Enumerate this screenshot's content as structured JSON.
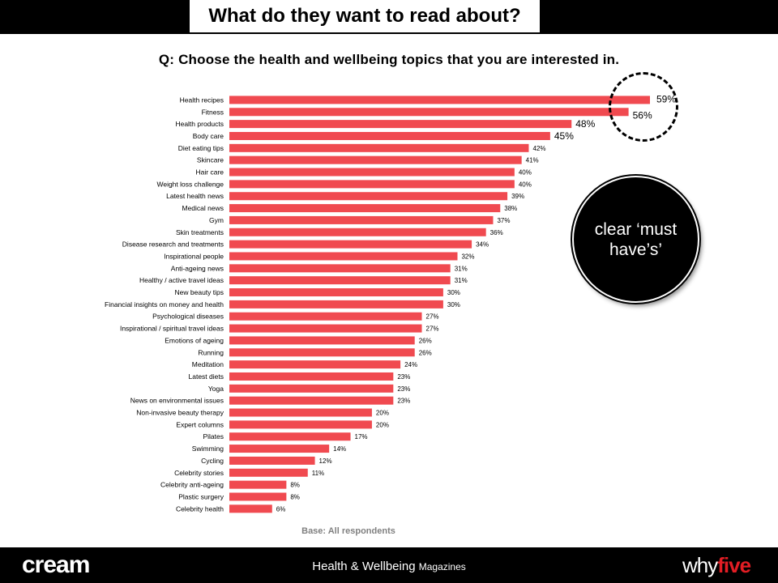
{
  "header": {
    "title": "What do they want to read about?"
  },
  "question": "Q: Choose the health and wellbeing topics that you are interested in.",
  "callout": {
    "text": "clear ‘must have’s’"
  },
  "base_note": "Base: All respondents",
  "footer": {
    "left_logo": "cream",
    "center_main": "Health & Wellbeing",
    "center_small": "Magazines",
    "right_logo_a": "why",
    "right_logo_b": "five"
  },
  "colors": {
    "bar": "#f04a50",
    "header_bg": "#000000",
    "logo_accent": "#e21d24"
  },
  "chart_data": {
    "type": "bar",
    "orientation": "horizontal",
    "categories": [
      "Health recipes",
      "Fitness",
      "Health products",
      "Body care",
      "Diet eating tips",
      "Skincare",
      "Hair care",
      "Weight loss challenge",
      "Latest health news",
      "Medical news",
      "Gym",
      "Skin treatments",
      "Disease research and treatments",
      "Inspirational people",
      "Anti-ageing news",
      "Healthy / active travel ideas",
      "New beauty tips",
      "Financial insights on money and health",
      "Psychological diseases",
      "Inspirational / spiritual travel ideas",
      "Emotions of ageing",
      "Running",
      "Meditation",
      "Latest diets",
      "Yoga",
      "News on environmental issues",
      "Non-invasive beauty therapy",
      "Expert columns",
      "Pilates",
      "Swimming",
      "Cycling",
      "Celebrity stories",
      "Celebrity anti-ageing",
      "Plastic surgery",
      "Celebrity health"
    ],
    "values": [
      59,
      56,
      48,
      45,
      42,
      41,
      40,
      40,
      39,
      38,
      37,
      36,
      34,
      32,
      31,
      31,
      30,
      30,
      27,
      27,
      26,
      26,
      24,
      23,
      23,
      23,
      20,
      20,
      17,
      14,
      12,
      11,
      8,
      8,
      6
    ],
    "value_suffix": "%",
    "highlight_large_labels": 4,
    "xlim": [
      0,
      59
    ],
    "grid": false,
    "legend": "none"
  }
}
